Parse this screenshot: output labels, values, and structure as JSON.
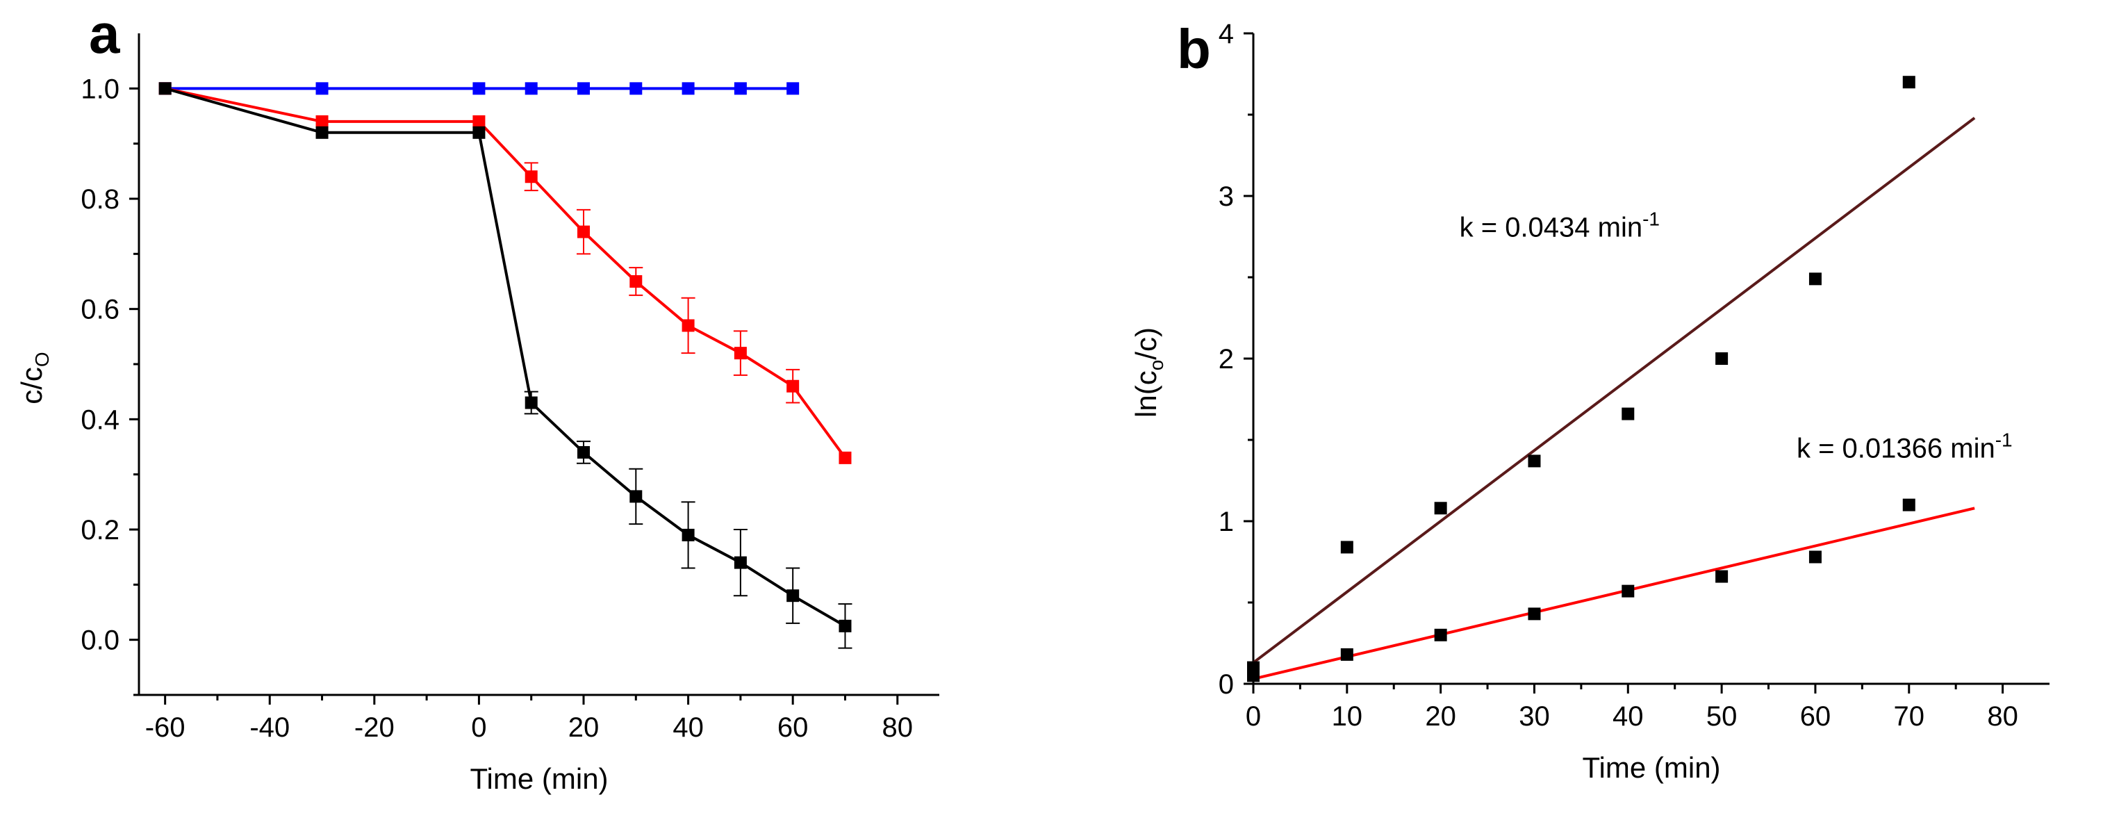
{
  "chart_data": [
    {
      "panel": "a",
      "type": "line",
      "xlabel": "Time (min)",
      "ylabel_main": "c/c",
      "ylabel_sub": "O",
      "xlim": [
        -65,
        88
      ],
      "ylim": [
        -0.1,
        1.1
      ],
      "xticks": [
        -60,
        -40,
        -20,
        0,
        20,
        40,
        60,
        80
      ],
      "yticks": [
        0.0,
        0.2,
        0.4,
        0.6,
        0.8,
        1.0
      ],
      "xtick_labels": [
        "-60",
        "-40",
        "-20",
        "0",
        "20",
        "40",
        "60",
        "80"
      ],
      "ytick_labels": [
        "0.0",
        "0.2",
        "0.4",
        "0.6",
        "0.8",
        "1.0"
      ],
      "grid": false,
      "series": [
        {
          "color": "#0000ff",
          "points": [
            {
              "x": -60,
              "y": 1.0
            },
            {
              "x": -30,
              "y": 1.0
            },
            {
              "x": 0,
              "y": 1.0
            },
            {
              "x": 10,
              "y": 1.0
            },
            {
              "x": 20,
              "y": 1.0
            },
            {
              "x": 30,
              "y": 1.0
            },
            {
              "x": 40,
              "y": 1.0
            },
            {
              "x": 50,
              "y": 1.0
            },
            {
              "x": 60,
              "y": 1.0
            }
          ]
        },
        {
          "color": "#ff0000",
          "points": [
            {
              "x": -60,
              "y": 1.0
            },
            {
              "x": -30,
              "y": 0.94
            },
            {
              "x": 0,
              "y": 0.94
            },
            {
              "x": 10,
              "y": 0.84,
              "err": 0.025
            },
            {
              "x": 20,
              "y": 0.74,
              "err": 0.04
            },
            {
              "x": 30,
              "y": 0.65,
              "err": 0.025
            },
            {
              "x": 40,
              "y": 0.57,
              "err": 0.05
            },
            {
              "x": 50,
              "y": 0.52,
              "err": 0.04
            },
            {
              "x": 60,
              "y": 0.46,
              "err": 0.03
            },
            {
              "x": 70,
              "y": 0.33
            }
          ]
        },
        {
          "color": "#000000",
          "points": [
            {
              "x": -60,
              "y": 1.0
            },
            {
              "x": -30,
              "y": 0.92
            },
            {
              "x": 0,
              "y": 0.92
            },
            {
              "x": 10,
              "y": 0.43,
              "err": 0.02
            },
            {
              "x": 20,
              "y": 0.34,
              "err": 0.02
            },
            {
              "x": 30,
              "y": 0.26,
              "err": 0.05
            },
            {
              "x": 40,
              "y": 0.19,
              "err": 0.06
            },
            {
              "x": 50,
              "y": 0.14,
              "err": 0.06
            },
            {
              "x": 60,
              "y": 0.08,
              "err": 0.05
            },
            {
              "x": 70,
              "y": 0.025,
              "err": 0.04
            }
          ]
        }
      ]
    },
    {
      "panel": "b",
      "type": "scatter",
      "xlabel": "Time (min)",
      "ylabel_main": "ln(c",
      "ylabel_sub": "o",
      "ylabel_tail": "/c)",
      "xlim": [
        0,
        85
      ],
      "ylim": [
        0,
        4
      ],
      "xticks": [
        0,
        10,
        20,
        30,
        40,
        50,
        60,
        70,
        80
      ],
      "yticks": [
        0,
        1,
        2,
        3,
        4
      ],
      "xtick_labels": [
        "0",
        "10",
        "20",
        "30",
        "40",
        "50",
        "60",
        "70",
        "80"
      ],
      "ytick_labels": [
        "0",
        "1",
        "2",
        "3",
        "4"
      ],
      "grid": false,
      "series": [
        {
          "marker_color": "#000000",
          "fit_color": "#5a1a1a",
          "points": [
            {
              "x": 0,
              "y": 0.1
            },
            {
              "x": 10,
              "y": 0.84
            },
            {
              "x": 20,
              "y": 1.08
            },
            {
              "x": 30,
              "y": 1.37
            },
            {
              "x": 40,
              "y": 1.66
            },
            {
              "x": 50,
              "y": 2.0
            },
            {
              "x": 60,
              "y": 2.49
            },
            {
              "x": 70,
              "y": 3.7
            }
          ],
          "fit": {
            "x0": 0,
            "y0": 0.13,
            "x1": 77,
            "y1": 3.48
          },
          "annotation": {
            "text": "k = 0.0434 min",
            "superscript": "-1",
            "x": 22,
            "y": 2.75
          }
        },
        {
          "marker_color": "#000000",
          "fit_color": "#ff0000",
          "points": [
            {
              "x": 0,
              "y": 0.05
            },
            {
              "x": 10,
              "y": 0.18
            },
            {
              "x": 20,
              "y": 0.3
            },
            {
              "x": 30,
              "y": 0.43
            },
            {
              "x": 40,
              "y": 0.57
            },
            {
              "x": 50,
              "y": 0.66
            },
            {
              "x": 60,
              "y": 0.78
            },
            {
              "x": 70,
              "y": 1.1
            }
          ],
          "fit": {
            "x0": 0,
            "y0": 0.03,
            "x1": 77,
            "y1": 1.08
          },
          "annotation": {
            "text": "k = 0.01366 min",
            "superscript": "-1",
            "x": 58,
            "y": 1.39
          }
        }
      ]
    }
  ]
}
